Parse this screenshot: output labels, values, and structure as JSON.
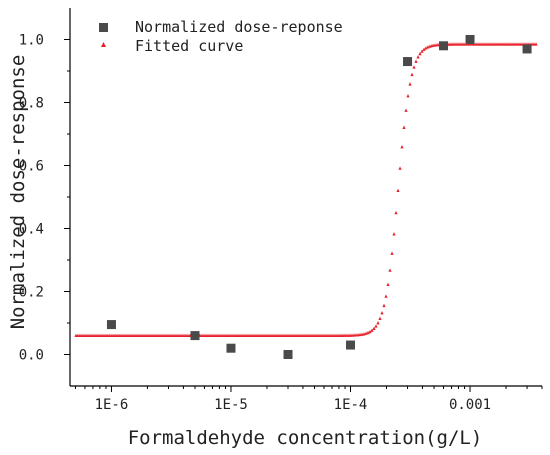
{
  "chart_data": {
    "type": "scatter",
    "xlabel": "Formaldehyde concentration(g/L)",
    "ylabel": "Normalized dose-response",
    "xscale": "log",
    "xlim": [
      4.5e-07,
      0.004
    ],
    "ylim": [
      -0.1,
      1.1
    ],
    "x_ticks": [
      {
        "value": 1e-06,
        "label": "1E-6"
      },
      {
        "value": 1e-05,
        "label": "1E-5"
      },
      {
        "value": 0.0001,
        "label": "1E-4"
      },
      {
        "value": 0.001,
        "label": "0.001"
      }
    ],
    "y_ticks": [
      {
        "value": 0.0,
        "label": "0.0"
      },
      {
        "value": 0.2,
        "label": "0.2"
      },
      {
        "value": 0.4,
        "label": "0.4"
      },
      {
        "value": 0.6,
        "label": "0.6"
      },
      {
        "value": 0.8,
        "label": "0.8"
      },
      {
        "value": 1.0,
        "label": "1.0"
      }
    ],
    "legend_position": "top-left",
    "series": [
      {
        "name": "Normalized dose-reponse",
        "kind": "scatter",
        "marker": "square",
        "color": "#4a4a4a",
        "points": [
          {
            "x": 1e-06,
            "y": 0.095
          },
          {
            "x": 5e-06,
            "y": 0.06
          },
          {
            "x": 1e-05,
            "y": 0.02
          },
          {
            "x": 3e-05,
            "y": 0.0
          },
          {
            "x": 0.0001,
            "y": 0.03
          },
          {
            "x": 0.0003,
            "y": 0.93
          },
          {
            "x": 0.0006,
            "y": 0.98
          },
          {
            "x": 0.001,
            "y": 1.0
          },
          {
            "x": 0.003,
            "y": 0.97
          }
        ]
      },
      {
        "name": "Fitted curve",
        "kind": "curve",
        "marker": "triangle",
        "color": "#e8202a",
        "model": {
          "bottom": 0.06,
          "top": 0.985,
          "ec50": 0.00025,
          "hill_slope": 8
        }
      }
    ]
  }
}
